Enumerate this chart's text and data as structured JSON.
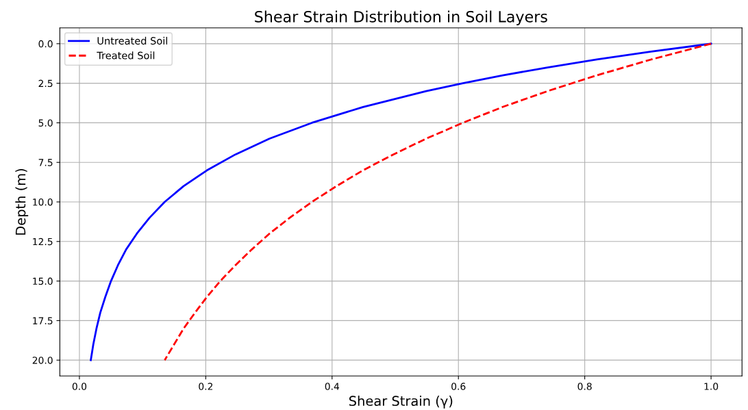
{
  "chart_data": {
    "type": "line",
    "title": "Shear Strain Distribution in Soil Layers",
    "xlabel": "Shear Strain (γ)",
    "ylabel": "Depth (m)",
    "series": [
      {
        "name": "Untreated Soil",
        "color": "#0000ff",
        "line_style": "solid",
        "x": [
          1,
          0.905,
          0.819,
          0.741,
          0.67,
          0.607,
          0.549,
          0.449,
          0.368,
          0.301,
          0.247,
          0.202,
          0.165,
          0.135,
          0.111,
          0.091,
          0.074,
          0.061,
          0.05,
          0.041,
          0.033,
          0.027,
          0.022,
          0.018
        ],
        "values": [
          0,
          0.5,
          1,
          1.5,
          2,
          2.5,
          3,
          4,
          5,
          6,
          7,
          8,
          9,
          10,
          11,
          12,
          13,
          14,
          15,
          16,
          17,
          18,
          19,
          20
        ]
      },
      {
        "name": "Treated Soil",
        "color": "#ff0000",
        "line_style": "dashed",
        "x": [
          1,
          0.905,
          0.819,
          0.741,
          0.67,
          0.607,
          0.549,
          0.497,
          0.449,
          0.407,
          0.368,
          0.333,
          0.301,
          0.273,
          0.247,
          0.223,
          0.202,
          0.183,
          0.165,
          0.15,
          0.135
        ],
        "values": [
          0,
          1,
          2,
          3,
          4,
          5,
          6,
          7,
          8,
          9,
          10,
          11,
          12,
          13,
          14,
          15,
          16,
          17,
          18,
          19,
          20
        ]
      }
    ],
    "xlim": [
      -0.031,
      1.049
    ],
    "ylim": [
      21,
      -1
    ],
    "xticks": [
      {
        "value": 0,
        "label": "0.0"
      },
      {
        "value": 0.2,
        "label": "0.2"
      },
      {
        "value": 0.4,
        "label": "0.4"
      },
      {
        "value": 0.6,
        "label": "0.6"
      },
      {
        "value": 0.8,
        "label": "0.8"
      },
      {
        "value": 1,
        "label": "1.0"
      }
    ],
    "yticks": [
      {
        "value": 0,
        "label": "0.0"
      },
      {
        "value": 2.5,
        "label": "2.5"
      },
      {
        "value": 5,
        "label": "5.0"
      },
      {
        "value": 7.5,
        "label": "7.5"
      },
      {
        "value": 10,
        "label": "10.0"
      },
      {
        "value": 12.5,
        "label": "12.5"
      },
      {
        "value": 15,
        "label": "15.0"
      },
      {
        "value": 17.5,
        "label": "17.5"
      },
      {
        "value": 20,
        "label": "20.0"
      }
    ],
    "grid": true,
    "legend": "top left"
  }
}
